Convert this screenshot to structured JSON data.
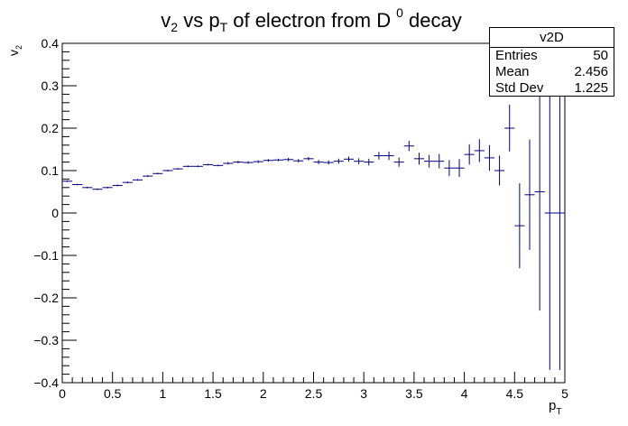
{
  "chart_data": {
    "type": "scatter",
    "title_parts": {
      "v": "v",
      "v_sub": "2",
      "vs": " vs p",
      "p_sub": "T",
      "mid": " of electron from D",
      "d_sup": "0",
      "end": " decay"
    },
    "xlabel": "p",
    "xlabel_sub": "T",
    "ylabel": "v",
    "ylabel_sub": "2",
    "xlim": [
      0,
      5
    ],
    "ylim": [
      -0.4,
      0.4
    ],
    "x_ticks": [
      "0",
      "0.5",
      "1",
      "1.5",
      "2",
      "2.5",
      "3",
      "3.5",
      "4",
      "4.5",
      "5"
    ],
    "y_ticks": [
      "−0.4",
      "−0.3",
      "−0.2",
      "−0.1",
      "0",
      "0.1",
      "0.2",
      "0.3",
      "0.4"
    ],
    "bin_width": 0.1,
    "grid": false,
    "color": "#000080",
    "series": [
      {
        "x": [
          0.05,
          0.15,
          0.25,
          0.35,
          0.45,
          0.55,
          0.65,
          0.75,
          0.85,
          0.95,
          1.05,
          1.15,
          1.25,
          1.35,
          1.45,
          1.55,
          1.65,
          1.75,
          1.85,
          1.95,
          2.05,
          2.15,
          2.25,
          2.35,
          2.45,
          2.55,
          2.65,
          2.75,
          2.85,
          2.95,
          3.05,
          3.15,
          3.25,
          3.35,
          3.45,
          3.55,
          3.65,
          3.75,
          3.85,
          3.95,
          4.05,
          4.15,
          4.25,
          4.35,
          4.45,
          4.55,
          4.65,
          4.75,
          4.85,
          4.95
        ],
        "y": [
          0.075,
          0.067,
          0.06,
          0.056,
          0.06,
          0.065,
          0.072,
          0.078,
          0.087,
          0.093,
          0.1,
          0.104,
          0.11,
          0.11,
          0.114,
          0.112,
          0.117,
          0.12,
          0.119,
          0.121,
          0.124,
          0.125,
          0.126,
          0.123,
          0.128,
          0.12,
          0.119,
          0.122,
          0.127,
          0.122,
          0.12,
          0.135,
          0.135,
          0.12,
          0.158,
          0.128,
          0.122,
          0.122,
          0.106,
          0.106,
          0.138,
          0.147,
          0.13,
          0.1,
          0.2,
          -0.03,
          0.043,
          0.05,
          0.0,
          0.0
        ],
        "yerr": [
          0.002,
          0.002,
          0.002,
          0.002,
          0.002,
          0.002,
          0.002,
          0.002,
          0.002,
          0.002,
          0.002,
          0.002,
          0.002,
          0.002,
          0.002,
          0.002,
          0.003,
          0.003,
          0.003,
          0.003,
          0.003,
          0.003,
          0.004,
          0.004,
          0.004,
          0.005,
          0.005,
          0.006,
          0.006,
          0.007,
          0.008,
          0.009,
          0.01,
          0.011,
          0.012,
          0.014,
          0.015,
          0.017,
          0.019,
          0.021,
          0.024,
          0.027,
          0.03,
          0.035,
          0.055,
          0.1,
          0.13,
          0.28,
          0.37,
          0.37
        ]
      }
    ]
  },
  "stats": {
    "title": "v2D",
    "rows": [
      {
        "label": "Entries",
        "value": "50"
      },
      {
        "label": "Mean",
        "value": "2.456"
      },
      {
        "label": "Std Dev",
        "value": "1.225"
      }
    ]
  }
}
